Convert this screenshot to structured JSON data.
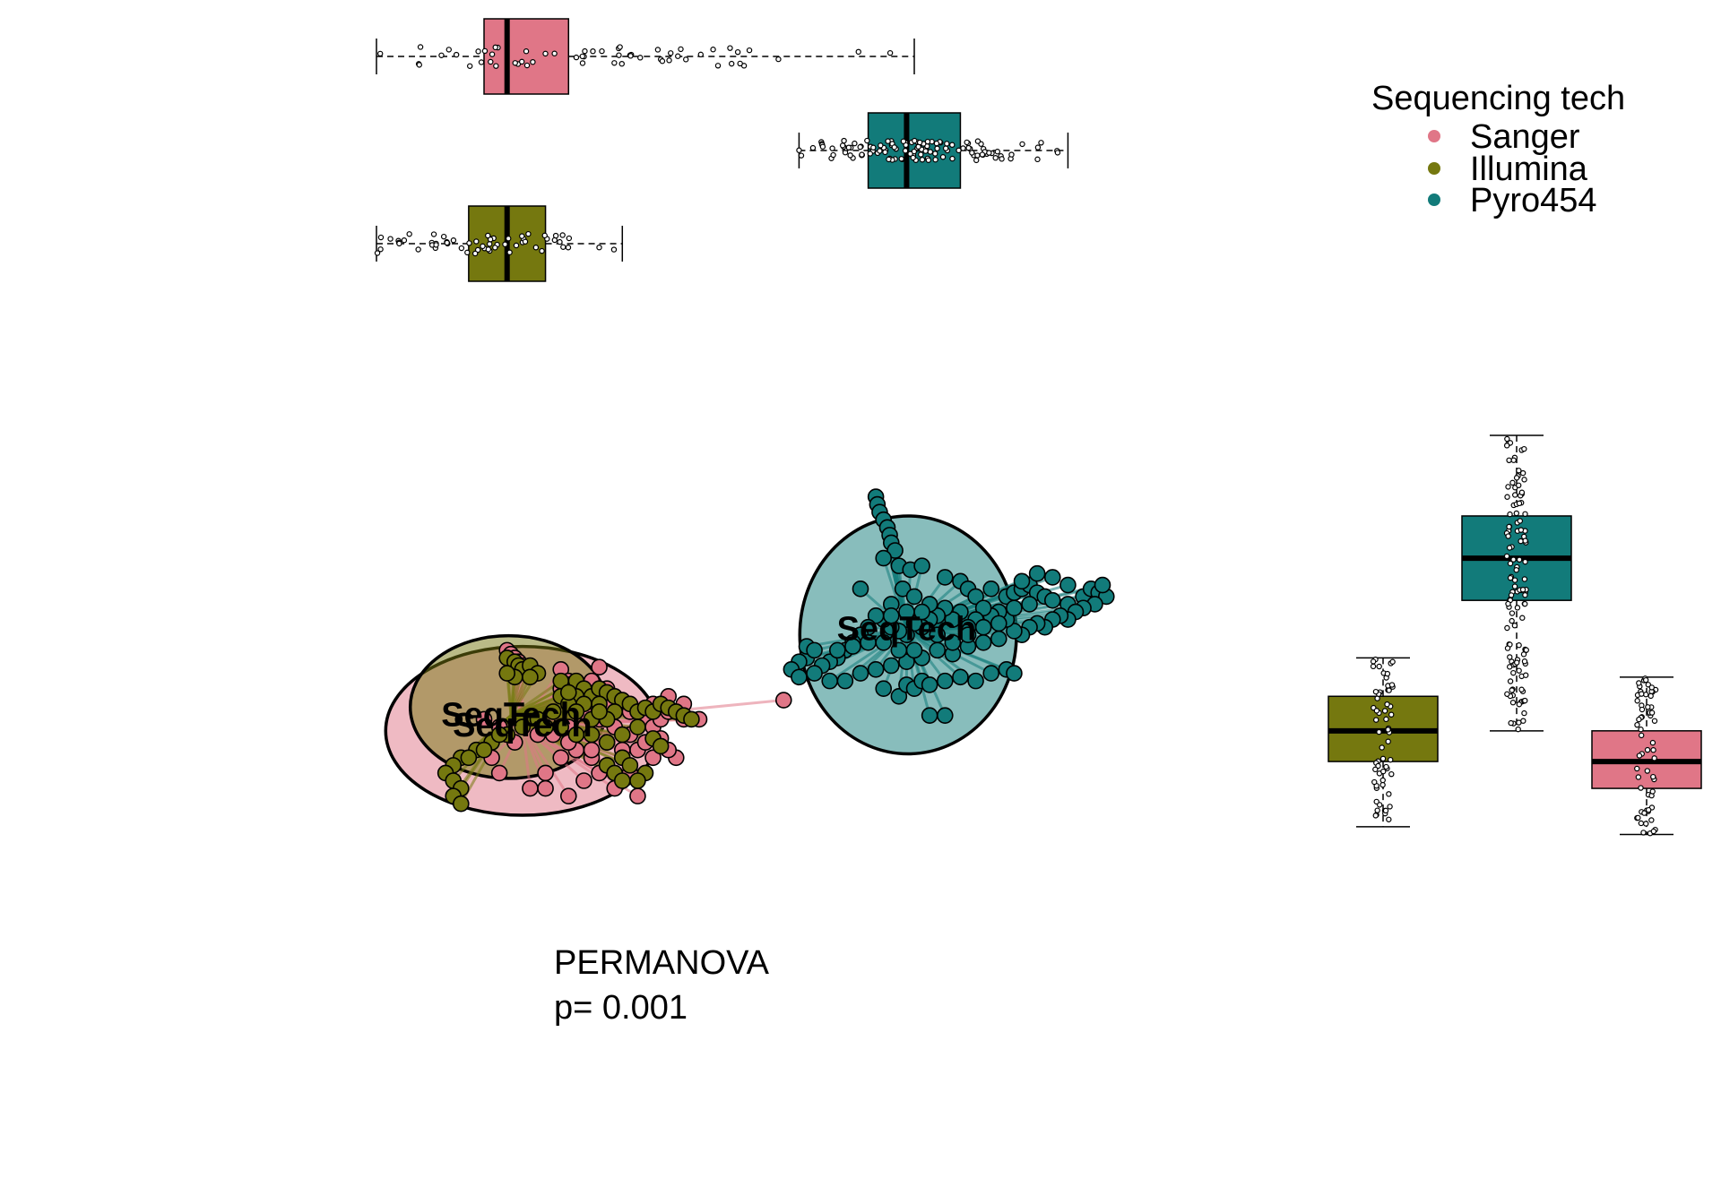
{
  "legend": {
    "title": "Sequencing tech",
    "items": [
      {
        "label": "Sanger",
        "color": "#E07687"
      },
      {
        "label": "Illumina",
        "color": "#75780F"
      },
      {
        "label": "Pyro454",
        "color": "#127B7A"
      }
    ]
  },
  "annotation": {
    "line1": "PERMANOVA",
    "line2": "p= 0.001"
  },
  "chart_data": [
    {
      "type": "scatter",
      "subtype": "ordination with group ellipses, spiders and centroid labels",
      "title": "",
      "xlabel": "",
      "ylabel": "",
      "grid": false,
      "xlim": [
        -0.6,
        0.45
      ],
      "ylim": [
        -0.38,
        0.22
      ],
      "groups": [
        {
          "name": "Sanger",
          "color": "#E07687",
          "centroid": [
            -0.41,
            -0.158
          ],
          "centroid_label": "SeqTech",
          "ellipse": {
            "cx": -0.41,
            "cy": -0.165,
            "rx": 0.178,
            "ry": 0.11
          }
        },
        {
          "name": "Illumina",
          "color": "#75780F",
          "centroid": [
            -0.425,
            -0.145
          ],
          "centroid_label": "SeqTech",
          "ellipse": {
            "cx": -0.428,
            "cy": -0.134,
            "rx": 0.128,
            "ry": 0.093
          }
        },
        {
          "name": "Pyro454",
          "color": "#127B7A",
          "centroid": [
            0.09,
            -0.033
          ],
          "centroid_label": "SeqTech",
          "ellipse": {
            "cx": 0.092,
            "cy": -0.04,
            "rx": 0.141,
            "ry": 0.155
          }
        }
      ],
      "points": {
        "Sanger": [
          [
            -0.43,
            -0.06
          ],
          [
            -0.425,
            -0.065
          ],
          [
            -0.42,
            -0.07
          ],
          [
            -0.415,
            -0.075
          ],
          [
            -0.41,
            -0.08
          ],
          [
            -0.36,
            -0.085
          ],
          [
            -0.31,
            -0.082
          ],
          [
            -0.35,
            -0.1
          ],
          [
            -0.33,
            -0.12
          ],
          [
            -0.3,
            -0.135
          ],
          [
            -0.28,
            -0.13
          ],
          [
            -0.27,
            -0.14
          ],
          [
            -0.25,
            -0.15
          ],
          [
            -0.24,
            -0.16
          ],
          [
            -0.23,
            -0.15
          ],
          [
            -0.22,
            -0.14
          ],
          [
            -0.2,
            -0.15
          ],
          [
            -0.18,
            -0.15
          ],
          [
            -0.21,
            -0.2
          ],
          [
            -0.22,
            -0.19
          ],
          [
            -0.24,
            -0.2
          ],
          [
            -0.26,
            -0.19
          ],
          [
            -0.28,
            -0.2
          ],
          [
            -0.3,
            -0.21
          ],
          [
            -0.32,
            -0.2
          ],
          [
            -0.34,
            -0.19
          ],
          [
            -0.36,
            -0.2
          ],
          [
            -0.38,
            -0.22
          ],
          [
            -0.4,
            -0.24
          ],
          [
            -0.39,
            -0.17
          ],
          [
            -0.37,
            -0.17
          ],
          [
            -0.35,
            -0.16
          ],
          [
            -0.33,
            -0.14
          ],
          [
            -0.31,
            -0.15
          ],
          [
            -0.29,
            -0.16
          ],
          [
            -0.27,
            -0.17
          ],
          [
            -0.25,
            -0.18
          ],
          [
            -0.23,
            -0.175
          ],
          [
            -0.36,
            -0.11
          ],
          [
            -0.34,
            -0.13
          ],
          [
            -0.32,
            -0.1
          ],
          [
            -0.3,
            -0.11
          ],
          [
            -0.42,
            -0.18
          ],
          [
            -0.44,
            -0.16
          ],
          [
            -0.46,
            -0.15
          ],
          [
            -0.45,
            -0.2
          ],
          [
            -0.44,
            -0.22
          ],
          [
            -0.38,
            -0.24
          ],
          [
            -0.35,
            -0.25
          ],
          [
            -0.33,
            -0.23
          ],
          [
            -0.31,
            -0.22
          ],
          [
            -0.29,
            -0.24
          ],
          [
            -0.27,
            -0.22
          ],
          [
            -0.26,
            -0.25
          ],
          [
            -0.3,
            -0.18
          ],
          [
            -0.24,
            -0.13
          ],
          [
            -0.22,
            -0.12
          ],
          [
            -0.2,
            -0.13
          ],
          [
            -0.35,
            -0.18
          ],
          [
            -0.32,
            -0.19
          ],
          [
            -0.28,
            -0.19
          ],
          [
            -0.07,
            -0.125
          ]
        ],
        "Illumina": [
          [
            -0.43,
            -0.07
          ],
          [
            -0.42,
            -0.075
          ],
          [
            -0.415,
            -0.08
          ],
          [
            -0.41,
            -0.085
          ],
          [
            -0.4,
            -0.08
          ],
          [
            -0.39,
            -0.09
          ],
          [
            -0.4,
            -0.095
          ],
          [
            -0.42,
            -0.095
          ],
          [
            -0.43,
            -0.09
          ],
          [
            -0.35,
            -0.105
          ],
          [
            -0.34,
            -0.1
          ],
          [
            -0.36,
            -0.1
          ],
          [
            -0.33,
            -0.11
          ],
          [
            -0.34,
            -0.12
          ],
          [
            -0.32,
            -0.12
          ],
          [
            -0.31,
            -0.11
          ],
          [
            -0.3,
            -0.115
          ],
          [
            -0.29,
            -0.12
          ],
          [
            -0.28,
            -0.125
          ],
          [
            -0.36,
            -0.12
          ],
          [
            -0.35,
            -0.13
          ],
          [
            -0.33,
            -0.13
          ],
          [
            -0.31,
            -0.13
          ],
          [
            -0.29,
            -0.14
          ],
          [
            -0.27,
            -0.13
          ],
          [
            -0.26,
            -0.14
          ],
          [
            -0.25,
            -0.135
          ],
          [
            -0.24,
            -0.14
          ],
          [
            -0.23,
            -0.13
          ],
          [
            -0.22,
            -0.135
          ],
          [
            -0.21,
            -0.14
          ],
          [
            -0.2,
            -0.145
          ],
          [
            -0.19,
            -0.15
          ],
          [
            -0.3,
            -0.15
          ],
          [
            -0.32,
            -0.15
          ],
          [
            -0.34,
            -0.14
          ],
          [
            -0.37,
            -0.14
          ],
          [
            -0.39,
            -0.15
          ],
          [
            -0.41,
            -0.16
          ],
          [
            -0.43,
            -0.17
          ],
          [
            -0.45,
            -0.18
          ],
          [
            -0.47,
            -0.19
          ],
          [
            -0.49,
            -0.2
          ],
          [
            -0.5,
            -0.21
          ],
          [
            -0.51,
            -0.22
          ],
          [
            -0.5,
            -0.23
          ],
          [
            -0.49,
            -0.24
          ],
          [
            -0.48,
            -0.2
          ],
          [
            -0.46,
            -0.19
          ],
          [
            -0.44,
            -0.17
          ],
          [
            -0.38,
            -0.16
          ],
          [
            -0.36,
            -0.16
          ],
          [
            -0.34,
            -0.17
          ],
          [
            -0.32,
            -0.17
          ],
          [
            -0.3,
            -0.18
          ],
          [
            -0.28,
            -0.17
          ],
          [
            -0.26,
            -0.16
          ],
          [
            -0.28,
            -0.2
          ],
          [
            -0.3,
            -0.21
          ],
          [
            -0.29,
            -0.22
          ],
          [
            -0.27,
            -0.21
          ],
          [
            -0.25,
            -0.22
          ],
          [
            -0.26,
            -0.23
          ],
          [
            -0.5,
            -0.25
          ],
          [
            -0.49,
            -0.26
          ],
          [
            -0.28,
            -0.23
          ],
          [
            -0.24,
            -0.175
          ],
          [
            -0.23,
            -0.185
          ],
          [
            -0.31,
            -0.14
          ],
          [
            -0.35,
            -0.115
          ]
        ],
        "Pyro454": [
          [
            0.05,
            0.14
          ],
          [
            0.052,
            0.13
          ],
          [
            0.055,
            0.12
          ],
          [
            0.06,
            0.11
          ],
          [
            0.065,
            0.1
          ],
          [
            0.068,
            0.09
          ],
          [
            0.07,
            0.08
          ],
          [
            0.075,
            0.07
          ],
          [
            0.06,
            0.06
          ],
          [
            0.08,
            0.05
          ],
          [
            0.095,
            0.045
          ],
          [
            0.11,
            0.05
          ],
          [
            0.03,
            0.02
          ],
          [
            0.07,
            0.0
          ],
          [
            0.085,
            0.02
          ],
          [
            0.1,
            0.01
          ],
          [
            0.14,
            0.035
          ],
          [
            0.16,
            0.03
          ],
          [
            0.17,
            0.02
          ],
          [
            0.18,
            0.01
          ],
          [
            0.2,
            0.02
          ],
          [
            0.22,
            0.01
          ],
          [
            0.23,
            0.015
          ],
          [
            0.24,
            0.02
          ],
          [
            0.25,
            0.025
          ],
          [
            0.26,
            0.015
          ],
          [
            0.27,
            0.01
          ],
          [
            0.28,
            0.005
          ],
          [
            0.3,
            0.0
          ],
          [
            0.32,
            0.01
          ],
          [
            0.33,
            0.02
          ],
          [
            0.34,
            0.015
          ],
          [
            0.35,
            0.01
          ],
          [
            0.345,
            0.025
          ],
          [
            0.335,
            0.0
          ],
          [
            0.32,
            -0.005
          ],
          [
            0.31,
            -0.01
          ],
          [
            0.3,
            -0.02
          ],
          [
            0.29,
            -0.015
          ],
          [
            0.28,
            -0.02
          ],
          [
            0.27,
            -0.03
          ],
          [
            0.26,
            -0.025
          ],
          [
            0.25,
            -0.03
          ],
          [
            0.24,
            -0.04
          ],
          [
            0.23,
            -0.035
          ],
          [
            0.22,
            -0.02
          ],
          [
            0.21,
            -0.01
          ],
          [
            0.2,
            -0.015
          ],
          [
            0.19,
            -0.005
          ],
          [
            0.18,
            -0.02
          ],
          [
            0.17,
            -0.03
          ],
          [
            0.16,
            -0.01
          ],
          [
            0.15,
            -0.02
          ],
          [
            0.14,
            -0.005
          ],
          [
            0.13,
            -0.015
          ],
          [
            0.12,
            -0.02
          ],
          [
            0.11,
            -0.03
          ],
          [
            0.1,
            -0.025
          ],
          [
            0.09,
            -0.04
          ],
          [
            0.08,
            -0.035
          ],
          [
            0.07,
            -0.03
          ],
          [
            0.06,
            -0.02
          ],
          [
            0.05,
            -0.015
          ],
          [
            0.04,
            -0.03
          ],
          [
            0.03,
            -0.04
          ],
          [
            0.02,
            -0.05
          ],
          [
            0.01,
            -0.06
          ],
          [
            0.0,
            -0.07
          ],
          [
            -0.01,
            -0.075
          ],
          [
            -0.02,
            -0.08
          ],
          [
            -0.04,
            -0.07
          ],
          [
            -0.05,
            -0.075
          ],
          [
            -0.06,
            -0.085
          ],
          [
            -0.05,
            -0.095
          ],
          [
            -0.03,
            -0.09
          ],
          [
            -0.01,
            -0.1
          ],
          [
            0.01,
            -0.1
          ],
          [
            0.03,
            -0.09
          ],
          [
            0.05,
            -0.085
          ],
          [
            0.07,
            -0.08
          ],
          [
            0.09,
            -0.075
          ],
          [
            0.11,
            -0.07
          ],
          [
            0.13,
            -0.06
          ],
          [
            0.15,
            -0.065
          ],
          [
            0.17,
            -0.055
          ],
          [
            0.19,
            -0.05
          ],
          [
            0.21,
            -0.045
          ],
          [
            0.06,
            -0.11
          ],
          [
            0.08,
            -0.12
          ],
          [
            0.09,
            -0.105
          ],
          [
            0.1,
            -0.11
          ],
          [
            0.11,
            -0.1
          ],
          [
            0.12,
            -0.105
          ],
          [
            0.14,
            -0.1
          ],
          [
            0.16,
            -0.095
          ],
          [
            0.18,
            -0.1
          ],
          [
            0.2,
            -0.09
          ],
          [
            0.22,
            -0.085
          ],
          [
            0.23,
            -0.09
          ],
          [
            0.12,
            -0.145
          ],
          [
            0.14,
            -0.145
          ],
          [
            0.1,
            -0.06
          ],
          [
            0.08,
            -0.06
          ],
          [
            0.06,
            -0.05
          ],
          [
            0.04,
            -0.05
          ],
          [
            0.02,
            -0.055
          ],
          [
            0.0,
            -0.06
          ],
          [
            0.13,
            -0.04
          ],
          [
            0.15,
            -0.05
          ],
          [
            0.17,
            -0.04
          ],
          [
            0.19,
            -0.03
          ],
          [
            0.21,
            -0.025
          ],
          [
            0.23,
            -0.005
          ],
          [
            0.25,
            0.0
          ],
          [
            0.24,
            0.03
          ],
          [
            0.26,
            0.04
          ],
          [
            0.28,
            0.035
          ],
          [
            0.3,
            0.025
          ],
          [
            0.12,
            0.0
          ],
          [
            0.11,
            -0.01
          ],
          [
            0.09,
            -0.01
          ],
          [
            0.07,
            -0.015
          ],
          [
            -0.04,
            -0.055
          ],
          [
            -0.03,
            -0.06
          ]
        ]
      }
    },
    {
      "type": "boxplot",
      "orientation": "horizontal",
      "description": "marginal distributions along the horizontal axis (top)",
      "boxes": [
        {
          "group": "Sanger",
          "color": "#E07687",
          "min": -0.6,
          "q1": -0.46,
          "median": -0.43,
          "q3": -0.35,
          "max": 0.1
        },
        {
          "group": "Pyro454",
          "color": "#127B7A",
          "min": -0.05,
          "q1": 0.04,
          "median": 0.09,
          "q3": 0.16,
          "max": 0.3
        },
        {
          "group": "Illumina",
          "color": "#75780F",
          "min": -0.6,
          "q1": -0.48,
          "median": -0.43,
          "q3": -0.38,
          "max": -0.28
        }
      ]
    },
    {
      "type": "boxplot",
      "orientation": "vertical",
      "description": "marginal distributions along the vertical axis (right)",
      "boxes": [
        {
          "group": "Illumina",
          "color": "#75780F",
          "min": -0.29,
          "q1": -0.205,
          "median": -0.165,
          "q3": -0.12,
          "max": -0.07
        },
        {
          "group": "Pyro454",
          "color": "#127B7A",
          "min": -0.165,
          "q1": 0.005,
          "median": 0.06,
          "q3": 0.115,
          "max": 0.22
        },
        {
          "group": "Sanger",
          "color": "#E07687",
          "min": -0.3,
          "q1": -0.24,
          "median": -0.205,
          "q3": -0.165,
          "max": -0.095
        }
      ]
    }
  ]
}
